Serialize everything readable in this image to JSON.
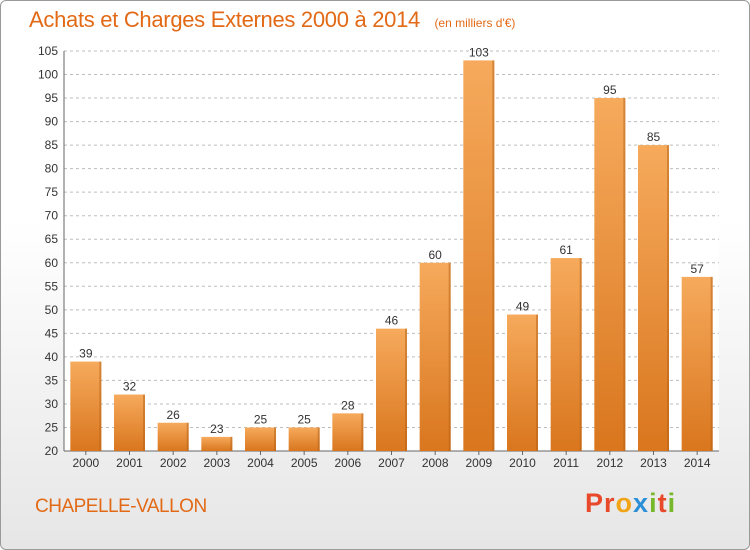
{
  "header": {
    "title": "Achats et Charges Externes 2000 à 2014",
    "subtitle": "(en milliers d'€)"
  },
  "footer": {
    "municipality": "CHAPELLE-VALLON",
    "brand_letters": [
      "P",
      "r",
      "o",
      "x",
      "i",
      "t",
      "i"
    ],
    "brand_colors": [
      "#e8492a",
      "#e8492a",
      "#f2a417",
      "#2b8fd8",
      "#77b82a",
      "#e8492a",
      "#77b82a"
    ]
  },
  "colors": {
    "bar_top": "#f6aa5c",
    "bar_bottom": "#d9761e",
    "bar_dark_edge": "#b35f14",
    "grid": "#bdbdbd",
    "axis": "#666666"
  },
  "chart_data": {
    "type": "bar",
    "categories": [
      "2000",
      "2001",
      "2002",
      "2003",
      "2004",
      "2005",
      "2006",
      "2007",
      "2008",
      "2009",
      "2010",
      "2011",
      "2012",
      "2013",
      "2014"
    ],
    "values": [
      39,
      32,
      26,
      23,
      25,
      25,
      28,
      46,
      60,
      103,
      49,
      61,
      95,
      85,
      57
    ],
    "ylim": [
      20,
      105
    ],
    "yticks": [
      20,
      25,
      30,
      35,
      40,
      45,
      50,
      55,
      60,
      65,
      70,
      75,
      80,
      85,
      90,
      95,
      100,
      105
    ],
    "grid": true,
    "grid_style": "dashed horizontal"
  }
}
